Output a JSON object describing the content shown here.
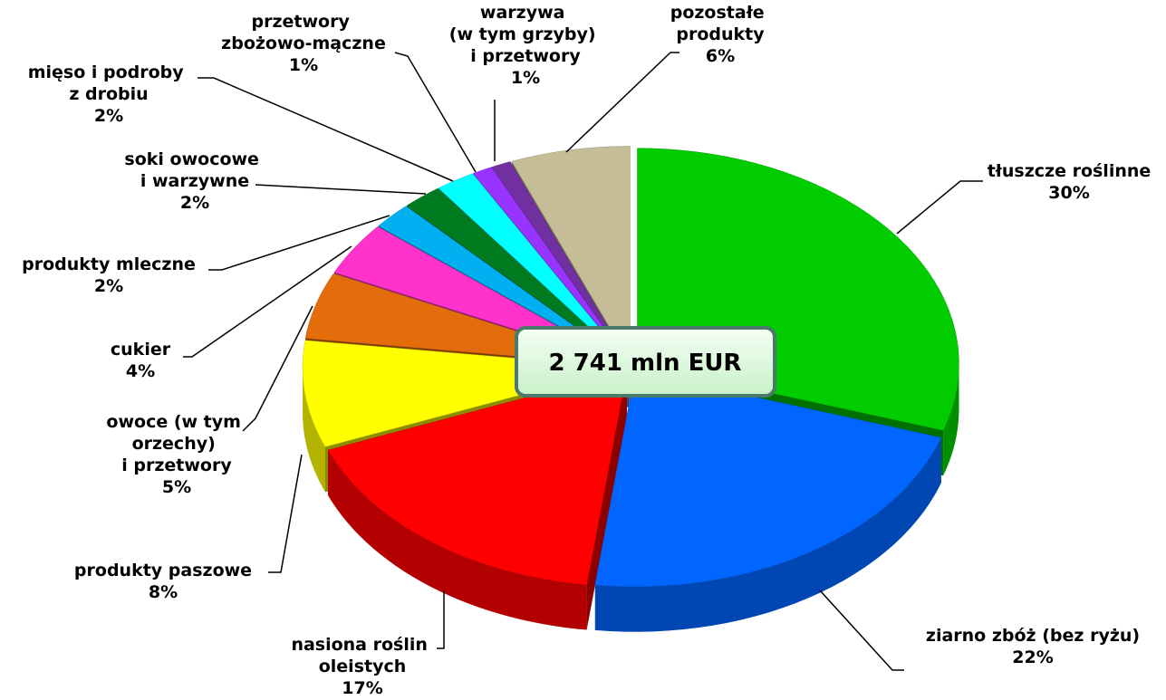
{
  "chart_data": {
    "type": "pie3d",
    "annotation": "2 741 mln EUR",
    "categories": [
      "tłuszcze roślinne",
      "ziarno zbóż (bez ryżu)",
      "nasiona roślin\noleistych",
      "produkty paszowe",
      "owoce (w tym\norzechy)\ni przetwory",
      "cukier",
      "produkty mleczne",
      "soki owocowe\ni warzywne",
      "mięso i podroby\nz drobiu",
      "przetwory\nzbożowo-mączne",
      "warzywa\n(w tym grzyby)\ni przetwory",
      "pozostałe\nprodukty"
    ],
    "values": [
      30,
      22,
      17,
      8,
      5,
      4,
      2,
      2,
      2,
      1,
      1,
      6
    ],
    "value_labels": [
      "30%",
      "22%",
      "17%",
      "8%",
      "5%",
      "4%",
      "2%",
      "2%",
      "2%",
      "1%",
      "1%",
      "6%"
    ],
    "colors": [
      "#00cc00",
      "#0066ff",
      "#ff0000",
      "#ffff00",
      "#e46c0a",
      "#ff33cc",
      "#00b0f0",
      "#007a1f",
      "#00ffff",
      "#9933ff",
      "#7030a0",
      "#c4bd97"
    ]
  }
}
